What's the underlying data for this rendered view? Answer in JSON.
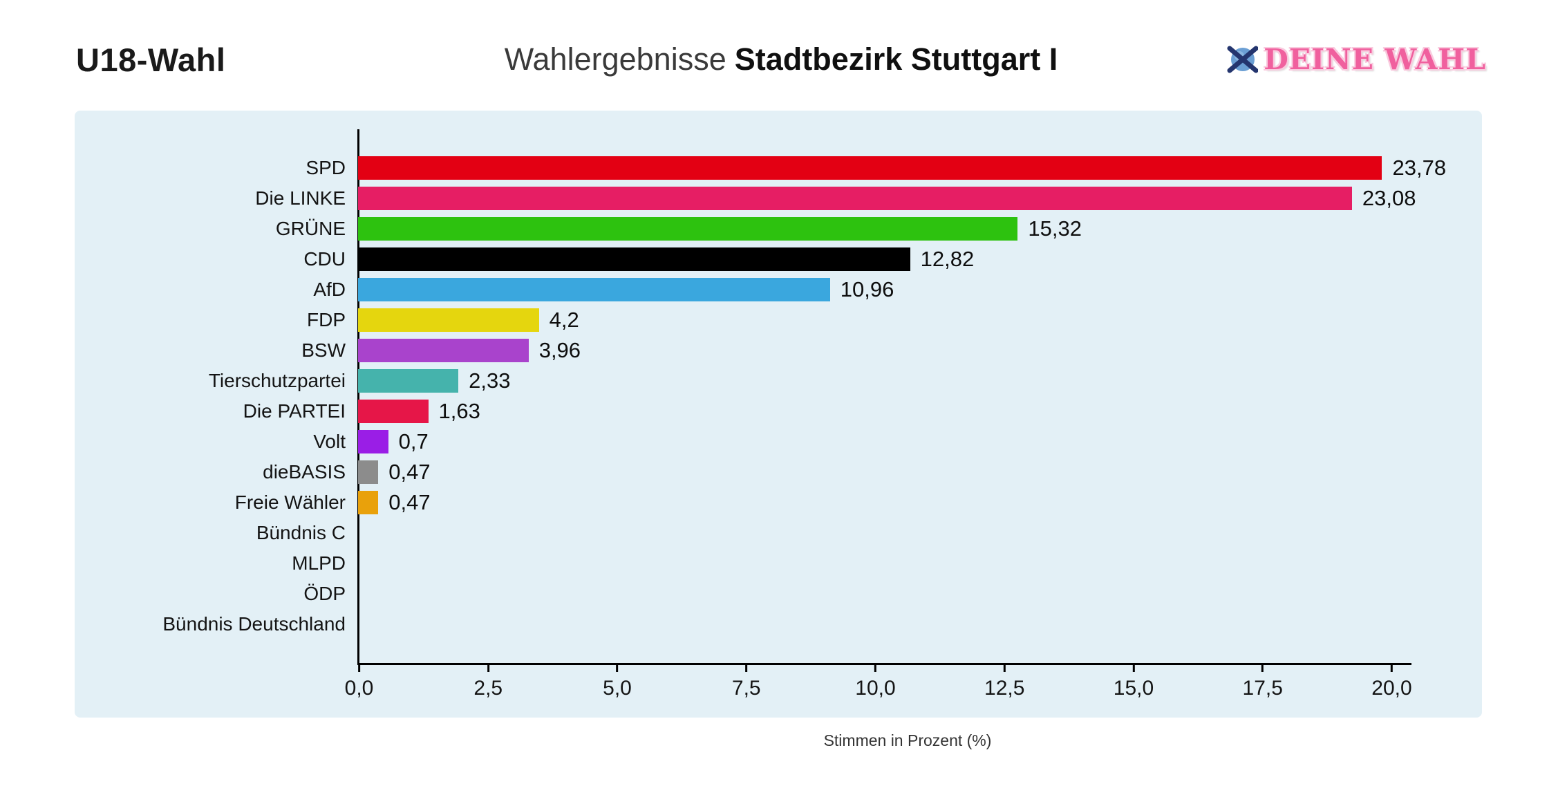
{
  "header": {
    "app_title": "U18-Wahl",
    "page_title_regular": "Wahlergebnisse",
    "page_title_bold": "Stadtbezirk Stuttgart I",
    "logo": {
      "text": "DEINE WAHL",
      "text_color": "#f0609e",
      "icon": "ballot-cross-icon",
      "icon_circle_color": "#6b9fd4",
      "icon_cross_color": "#24356e"
    }
  },
  "chart_data": {
    "type": "bar",
    "orientation": "horizontal",
    "title": "Wahlergebnisse Stadtbezirk Stuttgart I",
    "xlabel": "Stimmen in Prozent (%)",
    "categories": [
      "SPD",
      "Die LINKE",
      "GRÜNE",
      "CDU",
      "AfD",
      "FDP",
      "BSW",
      "Tierschutzpartei",
      "Die PARTEI",
      "Volt",
      "dieBASIS",
      "Freie Wähler",
      "Bündnis C",
      "MLPD",
      "ÖDP",
      "Bündnis Deutschland"
    ],
    "values": [
      23.78,
      23.08,
      15.32,
      12.82,
      10.96,
      4.2,
      3.96,
      2.33,
      1.63,
      0.7,
      0.47,
      0.47,
      0,
      0,
      0,
      0
    ],
    "value_labels": [
      "23,78",
      "23,08",
      "15,32",
      "12,82",
      "10,96",
      "4,2",
      "3,96",
      "2,33",
      "1,63",
      "0,7",
      "0,47",
      "0,47",
      "",
      "",
      "",
      ""
    ],
    "bar_colors": [
      "#e30013",
      "#e61e64",
      "#2dc20f",
      "#000000",
      "#3aa7de",
      "#e5d60e",
      "#a943cc",
      "#45b3ac",
      "#e61648",
      "#9a1ee6",
      "#8c8c8c",
      "#e9a10b",
      null,
      null,
      null,
      null
    ],
    "x_tick_labels": [
      "0,0",
      "2,5",
      "5,0",
      "7,5",
      "10,0",
      "12,5",
      "15,0",
      "17,5",
      "20,0"
    ],
    "x_tick_values": [
      0,
      2.5,
      5,
      7.5,
      10,
      12.5,
      15,
      17.5,
      20
    ],
    "xlim": [
      0,
      21.3
    ],
    "grid": false,
    "legend": "none",
    "panel_background": "#e3f0f6"
  }
}
